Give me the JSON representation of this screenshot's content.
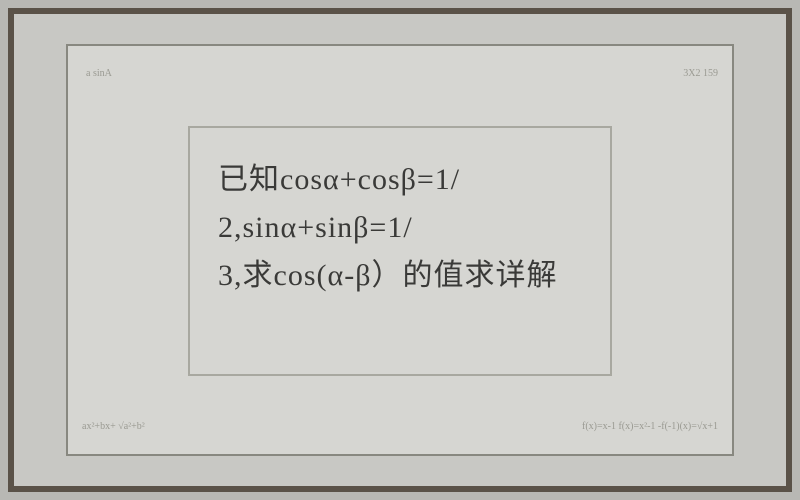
{
  "problem": {
    "line1": "已知cosα+cosβ=1/",
    "line2": "2,sinα+sinβ=1/",
    "line3": "3,求cos(α-β）的值求详解"
  },
  "decorations": {
    "top_left": "a\nsinA",
    "bottom_left": "ax²+bx+\n√a²+b²",
    "top_right": "3X2\n159",
    "bottom_right": "f(x)=x-1\nf(x)=x²-1\n-f(-1)(x)=√x+1"
  },
  "styling": {
    "frame_color": "#5a5248",
    "board_bg": "#d6d6d2",
    "outer_bg": "#b8b8b4",
    "text_color": "#3a3a38",
    "font_size_main": 30,
    "font_size_edge": 10
  }
}
